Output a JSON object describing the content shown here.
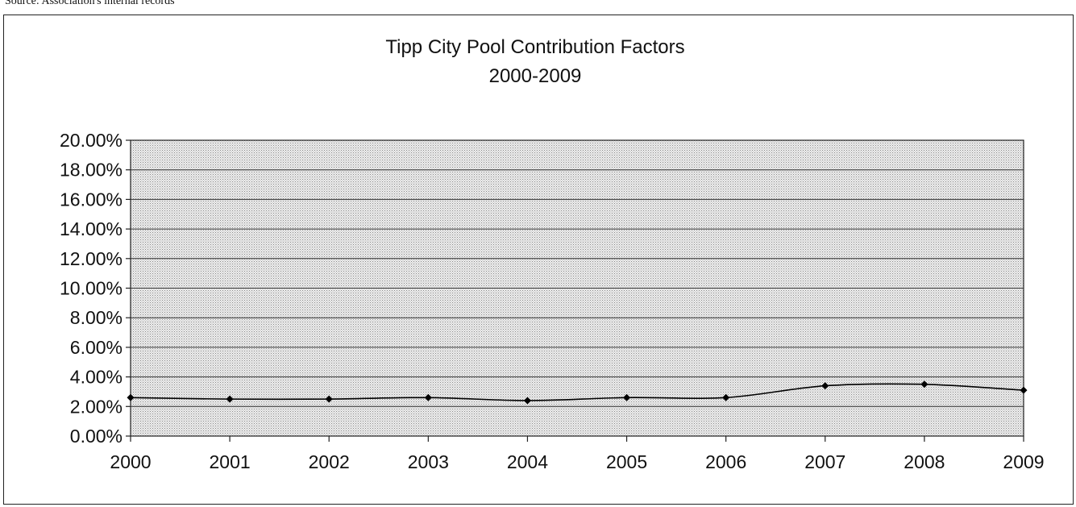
{
  "source_note": "Source: Association's internal records",
  "chart_data": {
    "type": "line",
    "title": "Tipp City Pool Contribution Factors",
    "subtitle": "2000-2009",
    "xlabel": "",
    "ylabel": "",
    "x": [
      "2000",
      "2001",
      "2002",
      "2003",
      "2004",
      "2005",
      "2006",
      "2007",
      "2008",
      "2009"
    ],
    "series": [
      {
        "values": [
          2.6,
          2.5,
          2.5,
          2.6,
          2.4,
          2.6,
          2.6,
          3.4,
          3.5,
          3.1
        ]
      }
    ],
    "ylim": [
      0,
      20
    ],
    "y_ticks": [
      "0.00%",
      "2.00%",
      "4.00%",
      "6.00%",
      "8.00%",
      "10.00%",
      "12.00%",
      "14.00%",
      "16.00%",
      "18.00%",
      "20.00%"
    ],
    "grid": true,
    "plot_fill": "pattern",
    "line_color": "#000000",
    "marker": "diamond"
  }
}
